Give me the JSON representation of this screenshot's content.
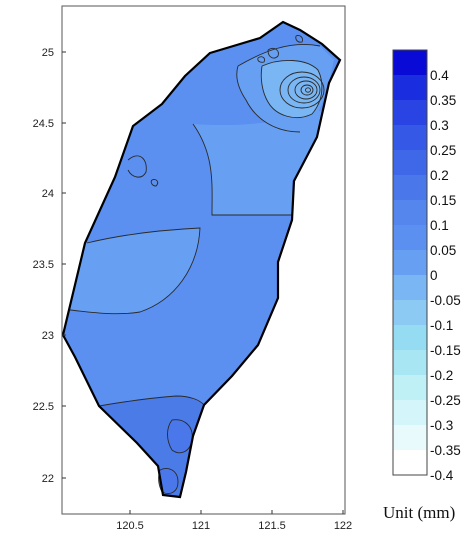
{
  "map": {
    "x_axis": {
      "ticks": [
        "120.5",
        "121",
        "121.5",
        "122"
      ]
    },
    "y_axis": {
      "ticks": [
        "25",
        "24.5",
        "24",
        "23.5",
        "23",
        "22.5",
        "22"
      ]
    },
    "colors": {
      "land_base": "#5b8ff0",
      "south_tip": "#4a7be6",
      "contour_line": "#2a2a2a",
      "coast_line": "#000000"
    }
  },
  "colorbar": {
    "ticks": [
      "0.4",
      "0.35",
      "0.3",
      "0.25",
      "0.2",
      "0.15",
      "0.1",
      "0.05",
      "0",
      "-0.05",
      "-0.1",
      "-0.15",
      "-0.2",
      "-0.25",
      "-0.3",
      "-0.35",
      "-0.4"
    ],
    "colors": [
      "#0a0ad6",
      "#1a2ee0",
      "#2a44e3",
      "#3558e6",
      "#3f68e8",
      "#4a78ea",
      "#5486ed",
      "#5b8ff0",
      "#67a0f2",
      "#7ab6f3",
      "#8ccaf4",
      "#95dcf2",
      "#a9e6f3",
      "#bff0f6",
      "#d4f5f9",
      "#e8fafc",
      "#ffffff"
    ],
    "unit_label": "Unit (mm)"
  }
}
